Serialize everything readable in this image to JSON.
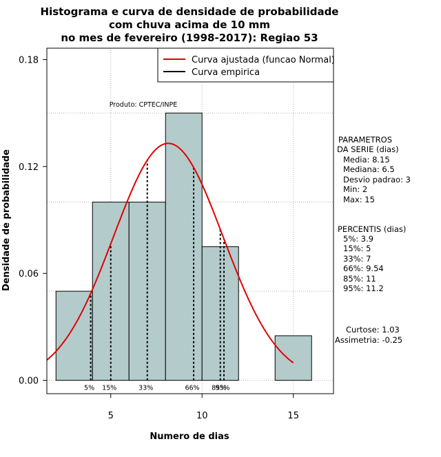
{
  "chart_data": {
    "type": "bar",
    "title": [
      "Histograma e curva de densidade de probabilidade",
      "com chuva acima de 10 mm",
      "no mes de fevereiro (1998-2017): Regiao 53"
    ],
    "xlabel": "Numero de dias",
    "ylabel": "Densidade de probabilidade",
    "xlim": [
      1.5,
      17.2
    ],
    "ylim": [
      -0.0075,
      0.1864
    ],
    "xticks": [
      5,
      10,
      15
    ],
    "xtick_labels": [
      "5",
      "10",
      "15"
    ],
    "yticks": [
      0.0,
      0.06,
      0.12,
      0.18
    ],
    "ytick_labels": [
      "0.00",
      "0.06",
      "0.12",
      "0.18"
    ],
    "grid_x": [
      5,
      10,
      15
    ],
    "grid_y": [
      0.0,
      0.05,
      0.1,
      0.15
    ],
    "bins": [
      {
        "x0": 2,
        "x1": 4,
        "density": 0.05
      },
      {
        "x0": 4,
        "x1": 6,
        "density": 0.1
      },
      {
        "x0": 6,
        "x1": 8,
        "density": 0.1
      },
      {
        "x0": 8,
        "x1": 10,
        "density": 0.15
      },
      {
        "x0": 10,
        "x1": 12,
        "density": 0.075
      },
      {
        "x0": 12,
        "x1": 14,
        "density": 0.0
      },
      {
        "x0": 14,
        "x1": 16,
        "density": 0.025
      }
    ],
    "normal_curve": {
      "mean": 8.15,
      "sd": 3,
      "x_range": [
        1.5,
        15
      ]
    },
    "series": [
      {
        "name": "Curva ajustada (funcao Normal)",
        "color": "#e00000"
      },
      {
        "name": "Curva empirica",
        "color": "#000000"
      }
    ],
    "percentile_lines": [
      {
        "label": "5%",
        "x": 3.9
      },
      {
        "label": "15%",
        "x": 5
      },
      {
        "label": "33%",
        "x": 7
      },
      {
        "label": "66%",
        "x": 9.54
      },
      {
        "label": "85%",
        "x": 11
      },
      {
        "label": "95%",
        "x": 11.2
      }
    ],
    "annotation": "Produto: CPTEC/INPE",
    "legend_position": "top-right"
  },
  "side_panel": {
    "params_title": [
      "PARAMETROS",
      "DA SERIE (dias)"
    ],
    "params": [
      "Media: 8.15",
      "Mediana: 6.5",
      "Desvio padrao: 3",
      "Min: 2",
      "Max: 15"
    ],
    "percentis_title": "PERCENTIS (dias)",
    "percentis": [
      "5%: 3.9",
      "15%: 5",
      "33%: 7",
      "66%: 9.54",
      "85%: 11",
      "95%: 11.2"
    ],
    "shape": [
      "Curtose: 1.03",
      "Assimetria: -0.25"
    ]
  },
  "colors": {
    "bar_fill": "#b4cbcb",
    "curve": "#e00000",
    "grid": "#b0b0b0"
  }
}
